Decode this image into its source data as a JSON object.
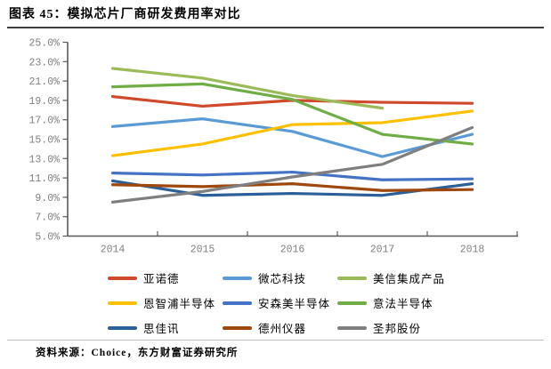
{
  "header": {
    "title": "图表 45：模拟芯片厂商研发费用率对比"
  },
  "footer": {
    "source": "资料来源：Choice，东方财富证券研究所"
  },
  "chart_data": {
    "type": "line",
    "title": "模拟芯片厂商研发费用率对比",
    "x": [
      "2014",
      "2015",
      "2016",
      "2017",
      "2018"
    ],
    "y_ticks": [
      "25.0%",
      "23.0%",
      "21.0%",
      "19.0%",
      "17.0%",
      "15.0%",
      "13.0%",
      "11.0%",
      "9.0%",
      "7.0%",
      "5.0%"
    ],
    "ylim": [
      5,
      25
    ],
    "y_step": 2,
    "grid": false,
    "legend_position": "bottom",
    "axis_color": "#595959",
    "tick_label_color": "#7f7f7f",
    "series": [
      {
        "name": "亚诺德",
        "color": "#d0492b",
        "values": [
          19.4,
          18.4,
          19.0,
          18.8,
          18.7
        ]
      },
      {
        "name": "微芯科技",
        "color": "#5b9bd5",
        "values": [
          16.3,
          17.1,
          15.8,
          13.2,
          15.5
        ]
      },
      {
        "name": "美信集成产品",
        "color": "#9bbb59",
        "values": [
          22.3,
          21.3,
          19.5,
          18.2,
          null
        ]
      },
      {
        "name": "恩智浦半导体",
        "color": "#ffc000",
        "values": [
          13.3,
          14.5,
          16.5,
          16.7,
          17.9
        ]
      },
      {
        "name": "安森美半导体",
        "color": "#4472c4",
        "values": [
          11.5,
          11.3,
          11.6,
          10.8,
          10.9
        ]
      },
      {
        "name": "意法半导体",
        "color": "#70ad47",
        "values": [
          20.4,
          20.7,
          19.1,
          15.5,
          14.5
        ]
      },
      {
        "name": "思佳讯",
        "color": "#2a6099",
        "values": [
          10.7,
          9.2,
          9.4,
          9.2,
          10.4
        ]
      },
      {
        "name": "德州仪器",
        "color": "#9e480e",
        "values": [
          10.3,
          10.1,
          10.4,
          9.7,
          9.8
        ]
      },
      {
        "name": "圣邦股份",
        "color": "#7f7f7f",
        "values": [
          8.5,
          9.6,
          11.1,
          12.4,
          16.2
        ]
      }
    ]
  }
}
